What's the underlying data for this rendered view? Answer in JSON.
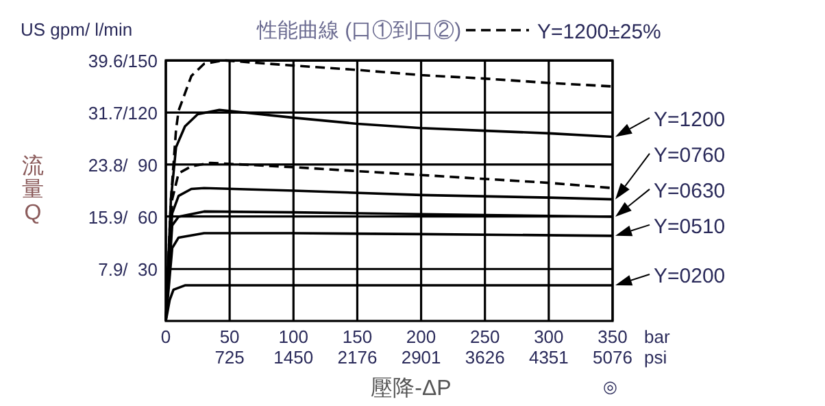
{
  "chart_data": {
    "type": "line",
    "title": "性能曲線 (口①到口②)",
    "xlabel": "壓降-ΔP",
    "ylabel": "流量Q",
    "annotations": [
      "US gpm/ l/min",
      "bar",
      "psi",
      "◎"
    ],
    "xlim": [
      0,
      350
    ],
    "ylim": [
      0,
      39.63
    ],
    "xticks": [
      0,
      50,
      100,
      150,
      200,
      250,
      300,
      350
    ],
    "x2lim": [
      0,
      5076
    ],
    "x2ticks": [
      725,
      1450,
      2176,
      2901,
      3626,
      4351,
      5076
    ],
    "y2ticks": [
      30,
      60,
      90,
      120,
      150
    ],
    "y2lim": [
      0,
      150
    ],
    "yticks": [
      {
        "value": 7.9,
        "label": "7.9/"
      },
      {
        "value": 15.9,
        "label": "15.9/"
      },
      {
        "value": 23.8,
        "label": "23.8/"
      },
      {
        "value": 31.7,
        "label": "31.7/"
      },
      {
        "value": 39.6,
        "label": "39.6/"
      }
    ],
    "grid": true,
    "legend": "top right",
    "marker": "none",
    "series": [
      {
        "name": "Y=1200±25%",
        "axis": "y2",
        "color": "#000000",
        "line_style": "dashed",
        "x": [
          0,
          4,
          8,
          10,
          20,
          30,
          45,
          100,
          150,
          200,
          250,
          300,
          350
        ],
        "values": [
          0,
          70,
          110,
          121,
          141,
          148,
          150,
          147,
          144.5,
          141.5,
          139.5,
          137,
          135
        ]
      },
      {
        "name": "Y=1200",
        "axis": "y2",
        "color": "#000000",
        "line_style": "solid",
        "x": [
          0,
          4,
          8,
          15,
          25,
          42,
          100,
          150,
          200,
          250,
          300,
          350
        ],
        "values": [
          0,
          70,
          100,
          112,
          119,
          121.5,
          117,
          113.5,
          111,
          109.5,
          108,
          106
        ]
      },
      {
        "axis": "y2",
        "color": "#000000",
        "line_style": "dashed",
        "x": [
          0,
          5,
          10,
          20,
          35,
          100,
          200,
          300,
          350
        ],
        "values": [
          0,
          70,
          85,
          89,
          91,
          88.5,
          84,
          79.5,
          76.5
        ]
      },
      {
        "name": "Y=0760",
        "axis": "y2",
        "color": "#000000",
        "line_style": "solid",
        "x": [
          0,
          5,
          10,
          20,
          30,
          100,
          200,
          300,
          350
        ],
        "values": [
          0,
          62,
          72,
          76,
          76.5,
          75,
          72.5,
          71,
          70
        ]
      },
      {
        "name": "Y=0630",
        "axis": "y2",
        "color": "#000000",
        "line_style": "solid",
        "x": [
          0,
          5,
          10,
          30,
          100,
          200,
          350
        ],
        "values": [
          0,
          55,
          60,
          63,
          62.5,
          61.5,
          60
        ]
      },
      {
        "name": "Y=0510",
        "axis": "y2",
        "color": "#000000",
        "line_style": "solid",
        "x": [
          0,
          5,
          10,
          30,
          100,
          200,
          350
        ],
        "values": [
          0,
          42,
          48,
          50.5,
          50.5,
          50,
          49
        ]
      },
      {
        "name": "Y=0200",
        "axis": "y2",
        "color": "#000000",
        "line_style": "solid",
        "x": [
          0,
          3,
          6,
          15,
          100,
          350
        ],
        "values": [
          0,
          12,
          18,
          20.5,
          20.5,
          20.5
        ]
      }
    ]
  }
}
